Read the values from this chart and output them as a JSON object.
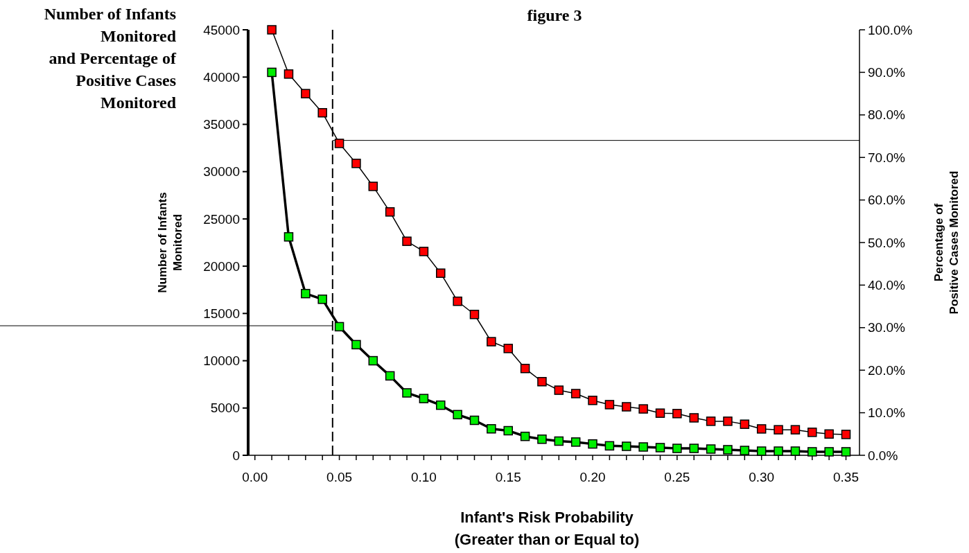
{
  "chart_data": {
    "type": "line",
    "title": "figure 3",
    "annotations": [
      "Number of Infants\nMonitored\nand Percentage of\nPositive Cases\nMonitored"
    ],
    "xlabel": "Infant's Risk Probability\n(Greater than or Equal to)",
    "ylabel": "Number of Infants\nMonitored",
    "y2label": "Percentage of\nPositive Cases Monitored",
    "x": [
      0.01,
      0.02,
      0.03,
      0.04,
      0.05,
      0.06,
      0.07,
      0.08,
      0.09,
      0.1,
      0.11,
      0.12,
      0.13,
      0.14,
      0.15,
      0.16,
      0.17,
      0.18,
      0.19,
      0.2,
      0.21,
      0.22,
      0.23,
      0.24,
      0.25,
      0.26,
      0.27,
      0.28,
      0.29,
      0.3,
      0.31,
      0.32,
      0.33,
      0.34,
      0.35
    ],
    "xlim": [
      -0.004,
      0.358
    ],
    "xticks": [
      {
        "value": 0,
        "label": "0.00"
      },
      {
        "value": 0.01,
        "label": null
      },
      {
        "value": 0.02,
        "label": null
      },
      {
        "value": 0.03,
        "label": null
      },
      {
        "value": 0.04,
        "label": null
      },
      {
        "value": 0.05,
        "label": "0.05"
      },
      {
        "value": 0.06,
        "label": null
      },
      {
        "value": 0.07,
        "label": null
      },
      {
        "value": 0.08,
        "label": null
      },
      {
        "value": 0.09,
        "label": null
      },
      {
        "value": 0.1,
        "label": "0.10"
      },
      {
        "value": 0.11,
        "label": null
      },
      {
        "value": 0.12,
        "label": null
      },
      {
        "value": 0.13,
        "label": null
      },
      {
        "value": 0.14,
        "label": null
      },
      {
        "value": 0.15,
        "label": "0.15"
      },
      {
        "value": 0.16,
        "label": null
      },
      {
        "value": 0.17,
        "label": null
      },
      {
        "value": 0.18,
        "label": null
      },
      {
        "value": 0.19,
        "label": null
      },
      {
        "value": 0.2,
        "label": "0.20"
      },
      {
        "value": 0.21,
        "label": null
      },
      {
        "value": 0.22,
        "label": null
      },
      {
        "value": 0.23,
        "label": null
      },
      {
        "value": 0.24,
        "label": null
      },
      {
        "value": 0.25,
        "label": "0.25"
      },
      {
        "value": 0.26,
        "label": null
      },
      {
        "value": 0.27,
        "label": null
      },
      {
        "value": 0.28,
        "label": null
      },
      {
        "value": 0.29,
        "label": null
      },
      {
        "value": 0.3,
        "label": "0.30"
      },
      {
        "value": 0.31,
        "label": null
      },
      {
        "value": 0.32,
        "label": null
      },
      {
        "value": 0.33,
        "label": null
      },
      {
        "value": 0.34,
        "label": null
      },
      {
        "value": 0.35,
        "label": "0.35"
      }
    ],
    "ylim": [
      0,
      45000
    ],
    "yticks": [
      0,
      5000,
      10000,
      15000,
      20000,
      25000,
      30000,
      35000,
      40000,
      45000
    ],
    "y2lim": [
      0,
      100
    ],
    "y2ticks": [
      {
        "value": 0,
        "label": "0.0%"
      },
      {
        "value": 10,
        "label": "10.0%"
      },
      {
        "value": 20,
        "label": "20.0%"
      },
      {
        "value": 30,
        "label": "30.0%"
      },
      {
        "value": 40,
        "label": "40.0%"
      },
      {
        "value": 50,
        "label": "50.0%"
      },
      {
        "value": 60,
        "label": "60.0%"
      },
      {
        "value": 70,
        "label": "70.0%"
      },
      {
        "value": 80,
        "label": "80.0%"
      },
      {
        "value": 90,
        "label": "90.0%"
      },
      {
        "value": 100,
        "label": "100.0%"
      }
    ],
    "marker": "square",
    "grid": false,
    "series": [
      {
        "color": "#ff0000",
        "axis": "y2",
        "values": [
          100,
          89.6,
          85.0,
          80.5,
          73.3,
          68.6,
          63.2,
          57.2,
          50.3,
          47.9,
          42.8,
          36.2,
          33.1,
          26.7,
          25.1,
          20.4,
          17.3,
          15.3,
          14.5,
          12.9,
          11.9,
          11.4,
          10.9,
          9.9,
          9.8,
          8.8,
          8.0,
          8.0,
          7.3,
          6.2,
          6.0,
          6.0,
          5.4,
          5.0,
          4.9
        ]
      },
      {
        "color": "#00ee00",
        "values": [
          40500,
          23100,
          17100,
          16500,
          13600,
          11700,
          10000,
          8400,
          6600,
          6000,
          5300,
          4300,
          3700,
          2800,
          2600,
          2000,
          1700,
          1500,
          1400,
          1200,
          1000,
          950,
          880,
          810,
          730,
          730,
          660,
          590,
          510,
          440,
          440,
          440,
          370,
          370,
          370
        ]
      }
    ],
    "ref_lines": [
      {
        "axis": "x",
        "value": 0.046,
        "line_style": "dashed"
      },
      {
        "axis": "y2",
        "value": 74
      },
      {
        "axis": "y",
        "value": 13700
      }
    ]
  }
}
